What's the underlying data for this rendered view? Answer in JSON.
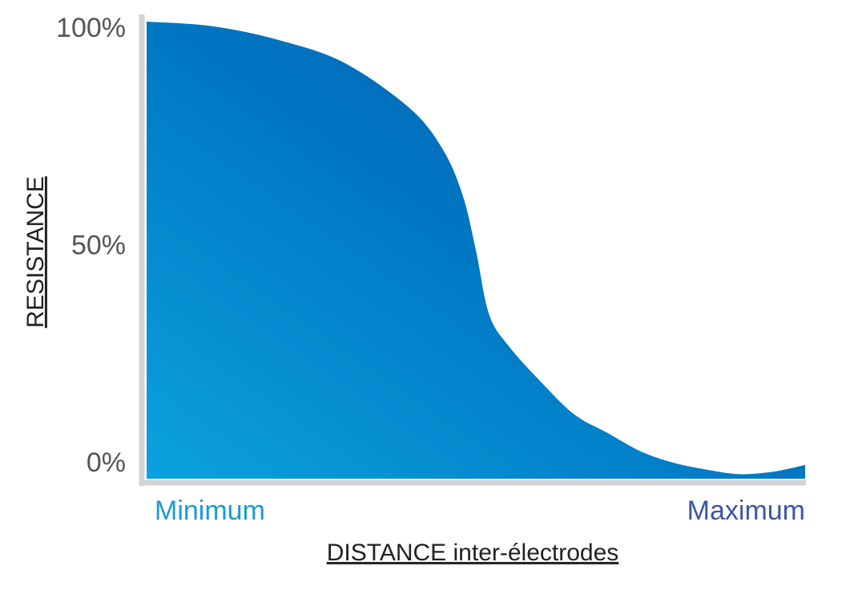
{
  "chart_data": {
    "type": "area",
    "x_label": "DISTANCE inter-électrodes",
    "y_label": "RESISTANCE",
    "x": [
      0,
      10,
      20,
      30,
      40,
      45,
      48,
      50,
      52,
      55,
      60,
      65,
      70,
      75,
      80,
      85,
      90,
      95,
      100
    ],
    "values": [
      100,
      99,
      96,
      91,
      81,
      72,
      62,
      50,
      36,
      29,
      21,
      14,
      10,
      6,
      3.5,
      2,
      1,
      1.5,
      3
    ],
    "gradient": [
      "#0ba2de",
      "#0077c2",
      "#0a58aa"
    ],
    "xlim": [
      0,
      100
    ],
    "xticks": [
      {
        "value": 0,
        "label": "Minimum"
      },
      {
        "value": 100,
        "label": "Maximum"
      }
    ],
    "xtick_colors": [
      "#1a9ad6",
      "#3d56a6"
    ],
    "ylim": [
      0,
      100
    ],
    "yticks": [
      {
        "value": 0,
        "label": "0%"
      },
      {
        "value": 50,
        "label": "50%"
      },
      {
        "value": 100,
        "label": "100%"
      }
    ],
    "grid": false
  }
}
